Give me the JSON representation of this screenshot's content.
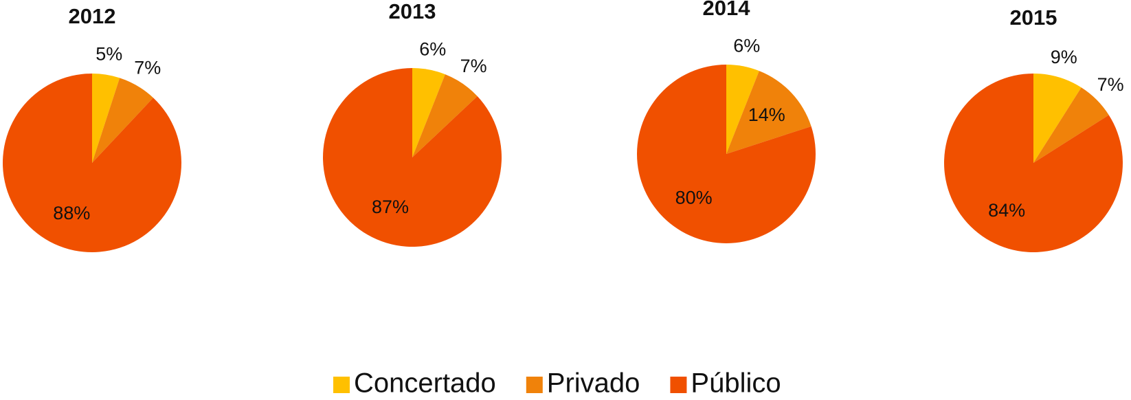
{
  "chart_data": [
    {
      "type": "pie",
      "title": "2012",
      "categories": [
        "Concertado",
        "Privado",
        "Público"
      ],
      "values": [
        5,
        7,
        88
      ],
      "value_labels": [
        "5%",
        "7%",
        "88%"
      ],
      "colors": [
        "#ffc000",
        "#f0820a",
        "#f05000"
      ]
    },
    {
      "type": "pie",
      "title": "2013",
      "categories": [
        "Concertado",
        "Privado",
        "Público"
      ],
      "values": [
        6,
        7,
        87
      ],
      "value_labels": [
        "6%",
        "7%",
        "87%"
      ],
      "colors": [
        "#ffc000",
        "#f0820a",
        "#f05000"
      ]
    },
    {
      "type": "pie",
      "title": "2014",
      "categories": [
        "Concertado",
        "Privado",
        "Público"
      ],
      "values": [
        6,
        14,
        80
      ],
      "value_labels": [
        "6%",
        "14%",
        "80%"
      ],
      "colors": [
        "#ffc000",
        "#f0820a",
        "#f05000"
      ]
    },
    {
      "type": "pie",
      "title": "2015",
      "categories": [
        "Concertado",
        "Privado",
        "Público"
      ],
      "values": [
        9,
        7,
        84
      ],
      "value_labels": [
        "9%",
        "7%",
        "84%"
      ],
      "colors": [
        "#ffc000",
        "#f0820a",
        "#f05000"
      ]
    }
  ]
}
